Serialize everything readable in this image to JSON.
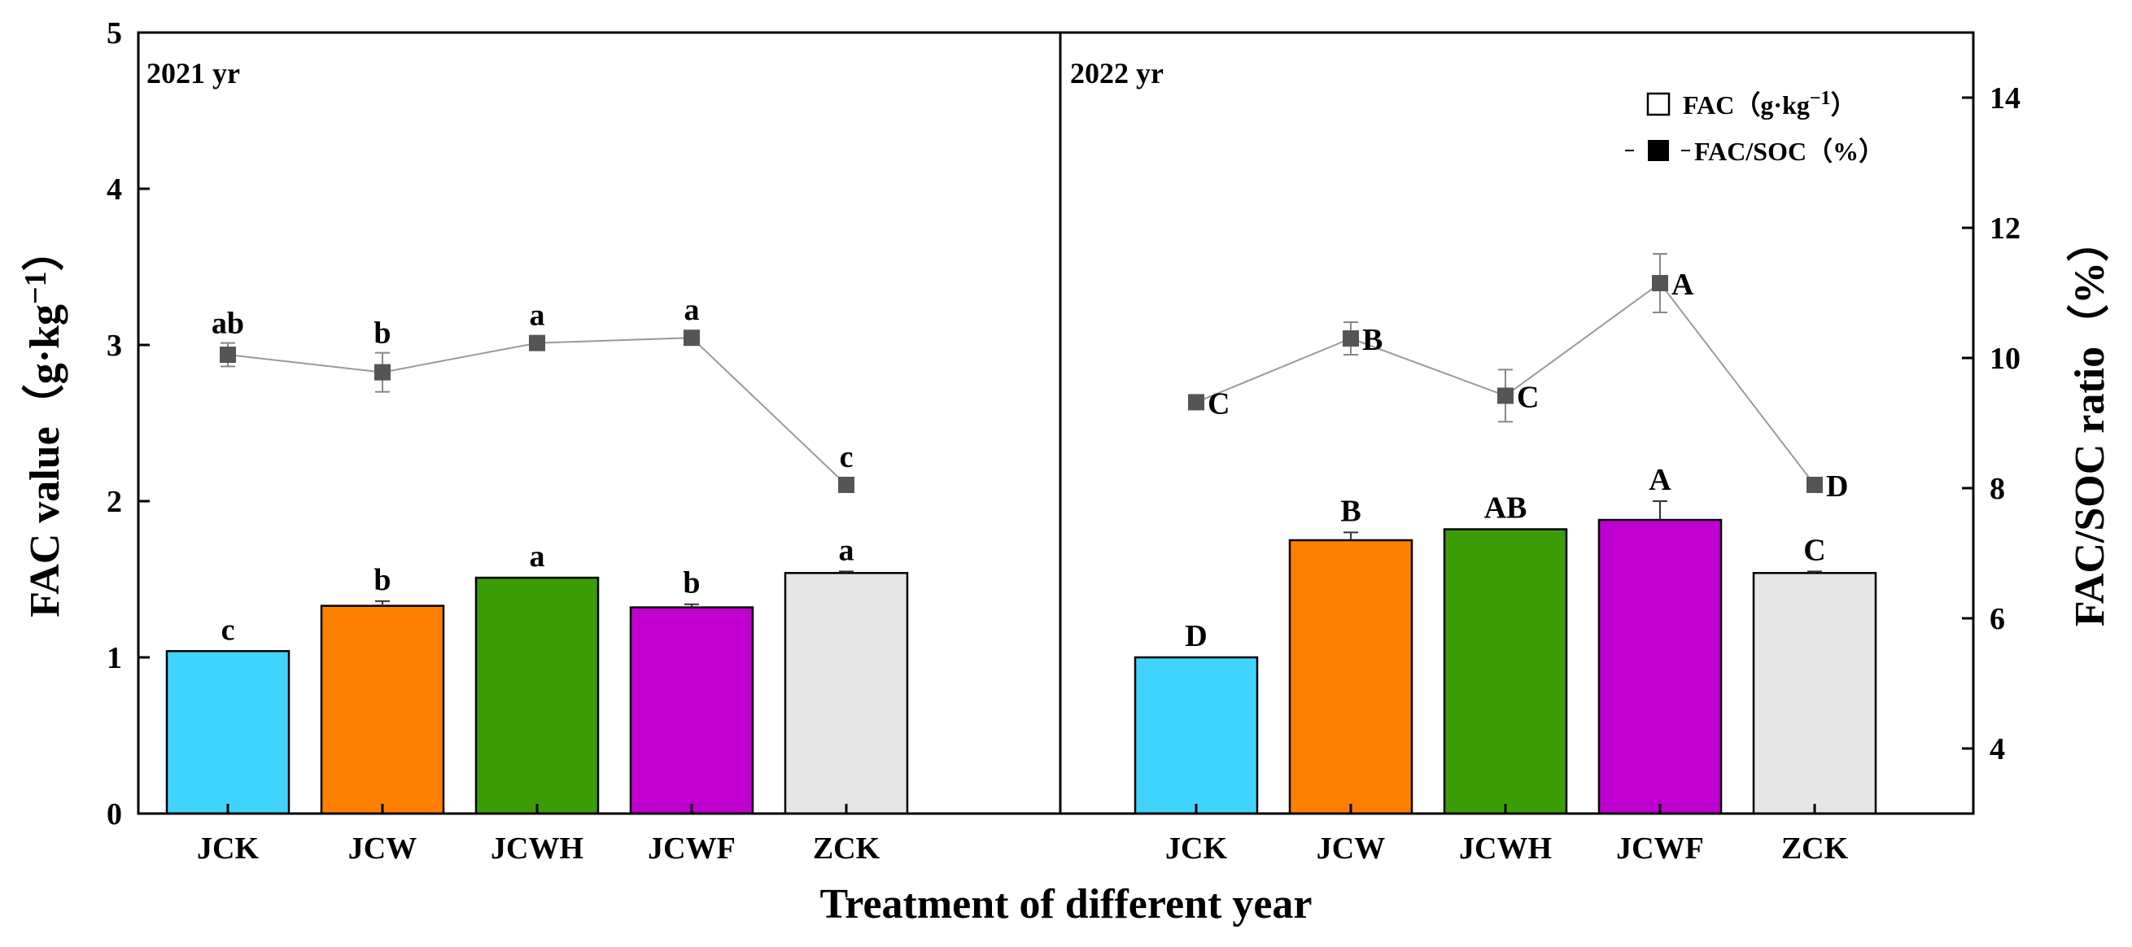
{
  "chart_data": {
    "type": "bar",
    "xlabel": "Treatment  of different year",
    "ylabel": "FAC value（g·kg",
    "ylabel_sup": "−1",
    "ylabel_close": "）",
    "y2label": "FAC/SOC ratio（%）",
    "ylim": [
      0,
      5
    ],
    "y2lim": [
      3,
      15
    ],
    "yticks": [
      "0",
      "1",
      "2",
      "3",
      "4",
      "5"
    ],
    "y2ticks": [
      "4",
      "6",
      "8",
      "10",
      "12",
      "14"
    ],
    "categories": [
      "JCK",
      "JCW",
      "JCWH",
      "JCWF",
      "ZCK"
    ],
    "colors": [
      "#40d4fc",
      "#ff8000",
      "#3c9c06",
      "#c000d0",
      "#e6e6e6"
    ],
    "line_color": "#555555",
    "legend": {
      "bar_label": "FAC（g·kg",
      "bar_sup": "−1",
      "bar_close": "）",
      "line_label": "FAC/SOC（%）",
      "position": "top-right"
    },
    "panels": [
      {
        "label": "2021 yr",
        "fac": [
          1.04,
          1.33,
          1.51,
          1.32,
          1.54
        ],
        "fac_err": [
          0.0,
          0.03,
          0.0,
          0.02,
          0.01
        ],
        "fac_sig": [
          "c",
          "b",
          "a",
          "b",
          "a"
        ],
        "ratio": [
          10.05,
          9.78,
          10.23,
          10.31,
          8.05
        ],
        "ratio_err": [
          0.18,
          0.3,
          0.0,
          0.0,
          0.0
        ],
        "ratio_sig": [
          "ab",
          "b",
          "a",
          "a",
          "c"
        ]
      },
      {
        "label": "2022 yr",
        "fac": [
          1.0,
          1.75,
          1.82,
          1.88,
          1.54
        ],
        "fac_err": [
          0.0,
          0.05,
          0.0,
          0.12,
          0.01
        ],
        "fac_sig": [
          "D",
          "B",
          "AB",
          "A",
          "C"
        ],
        "ratio": [
          9.32,
          10.3,
          9.42,
          11.15,
          8.05
        ],
        "ratio_err": [
          0.0,
          0.25,
          0.4,
          0.45,
          0.0
        ],
        "ratio_sig": [
          "C",
          "B",
          "C",
          "A",
          "D"
        ]
      }
    ]
  }
}
